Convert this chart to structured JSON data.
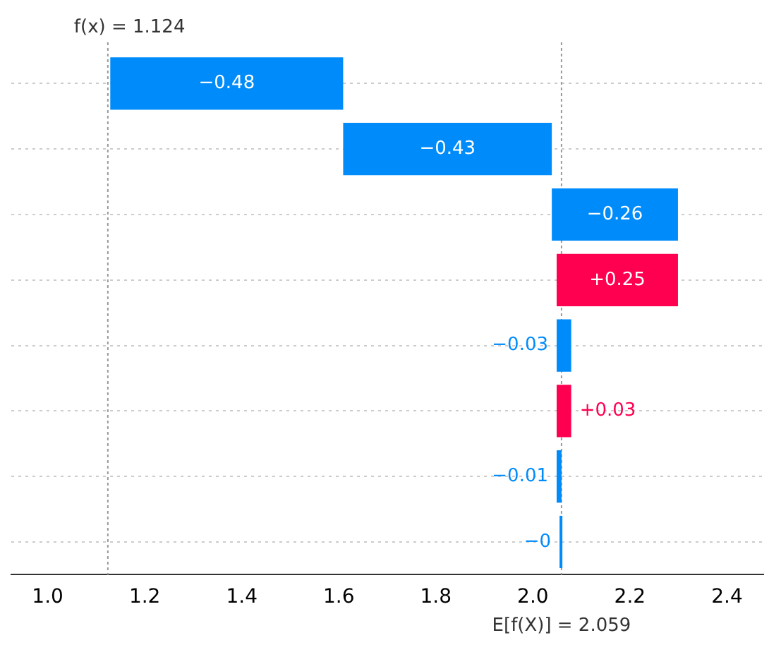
{
  "chart_data": {
    "type": "bar",
    "orientation": "horizontal",
    "categories": [
      null,
      null,
      null,
      null,
      null,
      null,
      null,
      null
    ],
    "values": [
      -0.48,
      -0.43,
      -0.26,
      0.25,
      -0.03,
      0.03,
      -0.01,
      -0.004
    ],
    "base": [
      1.609,
      2.039,
      2.299,
      2.049,
      2.079,
      2.049,
      2.059,
      2.059
    ],
    "colors": [
      "#008bfb",
      "#008bfb",
      "#008bfb",
      "#ff0051",
      "#008bfb",
      "#ff0051",
      "#008bfb",
      "#008bfb"
    ],
    "value_labels": [
      "−0.48",
      "−0.43",
      "−0.26",
      "+0.25",
      "−0.03",
      "+0.03",
      "−0.01",
      "−0"
    ],
    "xlim": [
      0.925,
      2.475
    ],
    "xticks": [
      {
        "value": 1.0,
        "label": "1.0"
      },
      1.2,
      1.4,
      1.6,
      1.8,
      {
        "value": 2.0,
        "label": "2.0"
      },
      2.2,
      2.4
    ],
    "ref_lines": [
      {
        "axis": "x",
        "value": 1.124,
        "label": "f(x) = 1.124"
      },
      {
        "axis": "x",
        "value": 2.059,
        "label": "E[f(X)] = 2.059"
      }
    ],
    "grid": "y",
    "tick_labels": "x",
    "legend": false
  }
}
